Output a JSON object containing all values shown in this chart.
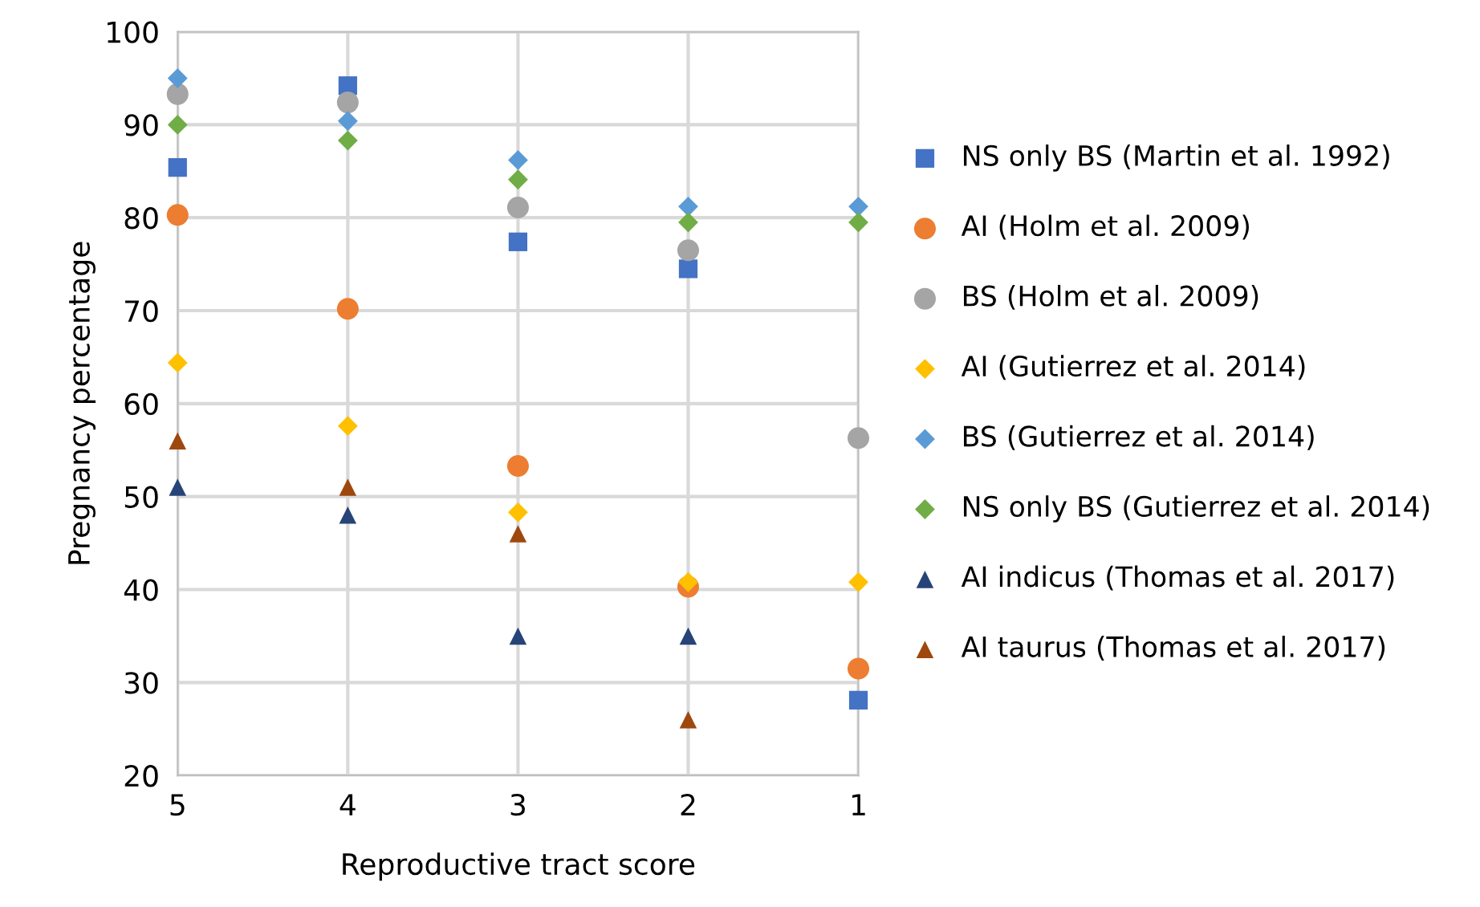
{
  "chart_data": {
    "type": "scatter",
    "xlabel": "Reproductive tract score",
    "ylabel": "Pregnancy percentage",
    "x": [
      5,
      4,
      3,
      2,
      1
    ],
    "xlim": [
      5,
      1
    ],
    "xticks": [
      5,
      4,
      3,
      2,
      1
    ],
    "ylim": [
      20,
      100
    ],
    "yticks": [
      20,
      30,
      40,
      50,
      60,
      70,
      80,
      90,
      100
    ],
    "grid": true,
    "legend": "right",
    "series": [
      {
        "name": "NS only BS (Martin et al. 1992)",
        "color": "#4472c4",
        "marker": "square",
        "values": [
          85.4,
          94.2,
          77.4,
          74.5,
          28.1
        ]
      },
      {
        "name": "AI (Holm et al. 2009)",
        "color": "#ed7d31",
        "marker": "circle",
        "values": [
          80.3,
          70.2,
          53.3,
          40.3,
          31.5
        ]
      },
      {
        "name": "BS (Holm et al. 2009)",
        "color": "#a5a5a5",
        "marker": "circle",
        "values": [
          93.3,
          92.4,
          81.1,
          76.5,
          56.3
        ]
      },
      {
        "name": "AI (Gutierrez et al. 2014)",
        "color": "#ffc000",
        "marker": "diamond",
        "values": [
          64.4,
          57.6,
          48.3,
          40.8,
          40.8
        ]
      },
      {
        "name": "BS (Gutierrez et al. 2014)",
        "color": "#5b9bd5",
        "marker": "diamond",
        "values": [
          95.0,
          90.4,
          86.2,
          81.2,
          81.2
        ]
      },
      {
        "name": "NS only BS (Gutierrez et al. 2014)",
        "color": "#70ad47",
        "marker": "diamond",
        "values": [
          90.0,
          88.3,
          84.1,
          79.5,
          79.5
        ]
      },
      {
        "name": "AI indicus (Thomas et al. 2017)",
        "color": "#264478",
        "marker": "triangle",
        "values": [
          51.0,
          48.0,
          35.0,
          35.0,
          null
        ]
      },
      {
        "name": "AI taurus (Thomas et al. 2017)",
        "color": "#9e480e",
        "marker": "triangle",
        "values": [
          56.0,
          51.0,
          46.0,
          26.0,
          null
        ]
      }
    ]
  }
}
